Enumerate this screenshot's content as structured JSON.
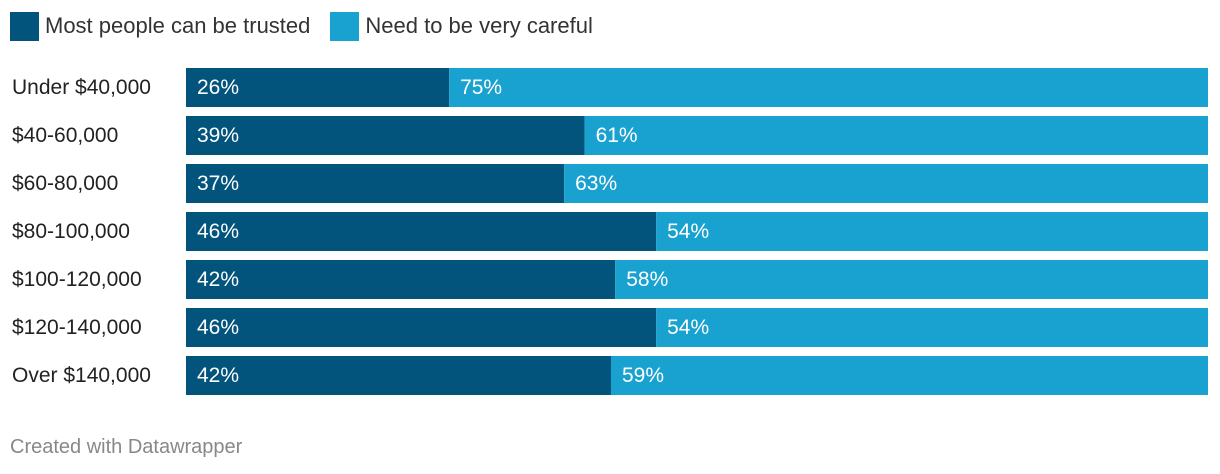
{
  "legend": {
    "items": [
      {
        "label": "Most people can be trusted",
        "color": "#03547c"
      },
      {
        "label": "Need to be very careful",
        "color": "#19a1d0"
      }
    ]
  },
  "footer": {
    "credit": "Created with Datawrapper"
  },
  "chart_data": {
    "type": "bar",
    "orientation": "horizontal",
    "stacked": true,
    "categories": [
      "Under $40,000",
      "$40-60,000",
      "$60-80,000",
      "$80-100,000",
      "$100-120,000",
      "$120-140,000",
      "Over $140,000"
    ],
    "series": [
      {
        "name": "Most people can be trusted",
        "color": "#03547c",
        "values": [
          26,
          39,
          37,
          46,
          42,
          46,
          42
        ],
        "labels": [
          "26%",
          "39%",
          "37%",
          "46%",
          "42%",
          "46%",
          "42%"
        ]
      },
      {
        "name": "Need to be very careful",
        "color": "#19a1d0",
        "values": [
          75,
          61,
          63,
          54,
          58,
          54,
          59
        ],
        "labels": [
          "75%",
          "61%",
          "63%",
          "54%",
          "58%",
          "54%",
          "59%"
        ]
      }
    ],
    "legend_position": "top-left",
    "grid": false
  }
}
